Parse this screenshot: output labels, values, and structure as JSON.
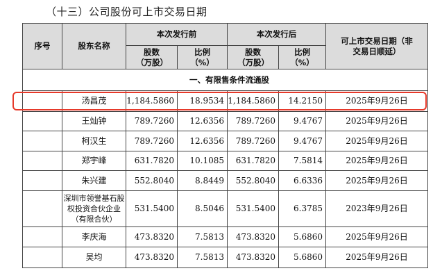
{
  "doc_title": "（十三）公司股份可上市交易日期",
  "headers": {
    "seq": "序号",
    "holder": "股东名称",
    "before": "本次发行前",
    "after": "本次发行后",
    "listing_date": "可上市交易日期（非交易日顺延）",
    "shares": "股数（万股）",
    "ratio": "比例（%）",
    "shares_after": "股数（万股）",
    "ratio_after": "比例（%）"
  },
  "section_label": "一、有限售条件流通股",
  "rows": [
    {
      "seq": "",
      "name": "汤昌茂",
      "shares_before": "1,184.5860",
      "ratio_before": "18.9534",
      "shares_after": "1,184.5860",
      "ratio_after": "14.2150",
      "date": "2025年9月26日"
    },
    {
      "seq": "",
      "name": "王灿钟",
      "shares_before": "789.7260",
      "ratio_before": "12.6356",
      "shares_after": "789.7260",
      "ratio_after": "9.4767",
      "date": "2025年9月26日"
    },
    {
      "seq": "",
      "name": "柯汉生",
      "shares_before": "789.7260",
      "ratio_before": "12.6356",
      "shares_after": "789.7260",
      "ratio_after": "9.4767",
      "date": "2025年9月26日"
    },
    {
      "seq": "",
      "name": "郑宇峰",
      "shares_before": "631.7820",
      "ratio_before": "10.1085",
      "shares_after": "631.7820",
      "ratio_after": "7.5814",
      "date": "2025年9月26日"
    },
    {
      "seq": "",
      "name": "朱兴建",
      "shares_before": "552.8040",
      "ratio_before": "8.8449",
      "shares_after": "552.8040",
      "ratio_after": "6.6336",
      "date": "2025年9月26日"
    },
    {
      "seq": "",
      "name": "深圳市领誉基石股权投资合伙企业（有限合伙）",
      "shares_before": "531.5400",
      "ratio_before": "8.5046",
      "shares_after": "531.5400",
      "ratio_after": "6.3785",
      "date": "2023年9月26日"
    },
    {
      "seq": "",
      "name": "李庆海",
      "shares_before": "473.8320",
      "ratio_before": "7.5813",
      "shares_after": "473.8320",
      "ratio_after": "5.6860",
      "date": "2025年9月26日"
    },
    {
      "seq": "",
      "name": "吴均",
      "shares_before": "473.8320",
      "ratio_before": "7.5813",
      "shares_after": "473.8320",
      "ratio_after": "5.6860",
      "date": "2025年9月26日"
    }
  ],
  "highlight_color": "#e6392a"
}
